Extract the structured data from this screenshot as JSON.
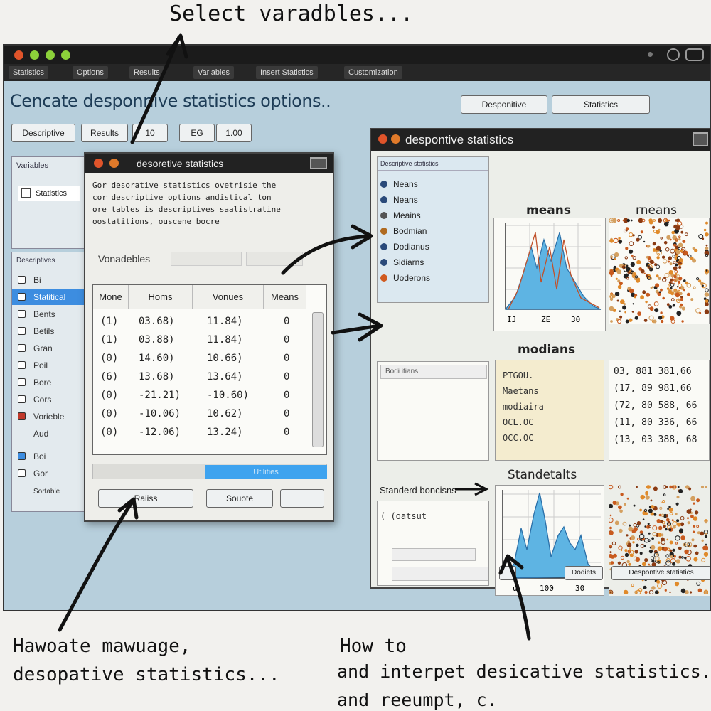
{
  "annotations": {
    "top": "Select varadbles...",
    "bottom_left_1": "Hawoate mawuage,",
    "bottom_left_2": "desopative statistics...",
    "bottom_right_1": "How to",
    "bottom_right_2": "and interpet desicative statistics...",
    "bottom_right_3": "and reeumpt,   c."
  },
  "window": {
    "menu": [
      "Statistics",
      "Options",
      "Results",
      "Variables",
      "Insert Statistics",
      "Customization"
    ],
    "title": "Cencate desponnive statistics options..",
    "toolbar": {
      "left": [
        "Descriptive",
        "Results",
        "10",
        "EG",
        "1.00"
      ],
      "right": [
        "Desponitive",
        "Statistics"
      ]
    }
  },
  "sidebar": {
    "top_label": "Variables",
    "top_item": "Statistics",
    "list_header": "Descriptives",
    "items": [
      "Bi",
      "Statitical",
      "Bents",
      "Betils",
      "Gran",
      "Poil",
      "Bore",
      "Cors",
      "Vorieble",
      "Aud",
      "Boi",
      "Gor",
      "Sortable"
    ]
  },
  "dialog": {
    "title": "desoretive statistics",
    "desc": [
      "Gor desorative statistics ovetrisie the",
      "cor descriptive options andistical ton",
      "ore tables is descriptives saalistratine",
      "oostatitions, ouscene bocre"
    ],
    "variables_label": "Vonadebles",
    "columns": [
      "Mone",
      "Homs",
      "Vonues",
      "Means"
    ],
    "rows": [
      {
        "a": "(1)",
        "b": "03.68)",
        "c": "11.84)",
        "d": "0"
      },
      {
        "a": "(1)",
        "b": "03.88)",
        "c": "11.84)",
        "d": "0"
      },
      {
        "a": "(0)",
        "b": "14.60)",
        "c": "10.66)",
        "d": "0"
      },
      {
        "a": "(6)",
        "b": "13.68)",
        "c": "13.64)",
        "d": "0"
      },
      {
        "a": "(0)",
        "b": "-21.21)",
        "c": "-10.60)",
        "d": "0"
      },
      {
        "a": "(0)",
        "b": "-10.06)",
        "c": "10.62)",
        "d": "0"
      },
      {
        "a": "(0)",
        "b": "-12.06)",
        "c": "13.24)",
        "d": "0"
      }
    ],
    "footer_btn_left": "Raiiss",
    "footer_btn_mid": "Souote",
    "highlight": "Utilities"
  },
  "results": {
    "title": "despontive statistics",
    "list_header": "Descriptive statistics",
    "list": [
      {
        "label": "Neans",
        "color": "#2a4a7a"
      },
      {
        "label": "Neans",
        "color": "#2a4a7a"
      },
      {
        "label": "Meains",
        "color": "#555555"
      },
      {
        "label": "Bodmian",
        "color": "#b06a20"
      },
      {
        "label": "Dodianus",
        "color": "#2a4a7a"
      },
      {
        "label": "Sidiarns",
        "color": "#2a4a7a"
      },
      {
        "label": "Uoderons",
        "color": "#d05a20"
      }
    ],
    "means_title": "means",
    "means_title2": "rneans",
    "means_ticks": [
      "IJ",
      "ZE",
      "30"
    ],
    "medians_title": "modians",
    "medians_input": "Bodi itians",
    "medians_rows": [
      "PTGOU.",
      "Maetans",
      "modiaira",
      "OCL.OC",
      "OCC.OC"
    ],
    "medians_nums": [
      "03,  881  381,66",
      "(17,  89  981,66",
      "(72,  80  588,  66",
      "(11,  80  336,  66",
      "(13,  03  388,  68"
    ],
    "stand_title": "Standetalts",
    "stand_label": "Standerd boncisns",
    "stand_input": "(  (oatsut",
    "stand_ticks": [
      "u",
      "100",
      "30"
    ],
    "bottom_btn_mid": "Dodiets",
    "bottom_btn_right": "Despontive statistics"
  }
}
